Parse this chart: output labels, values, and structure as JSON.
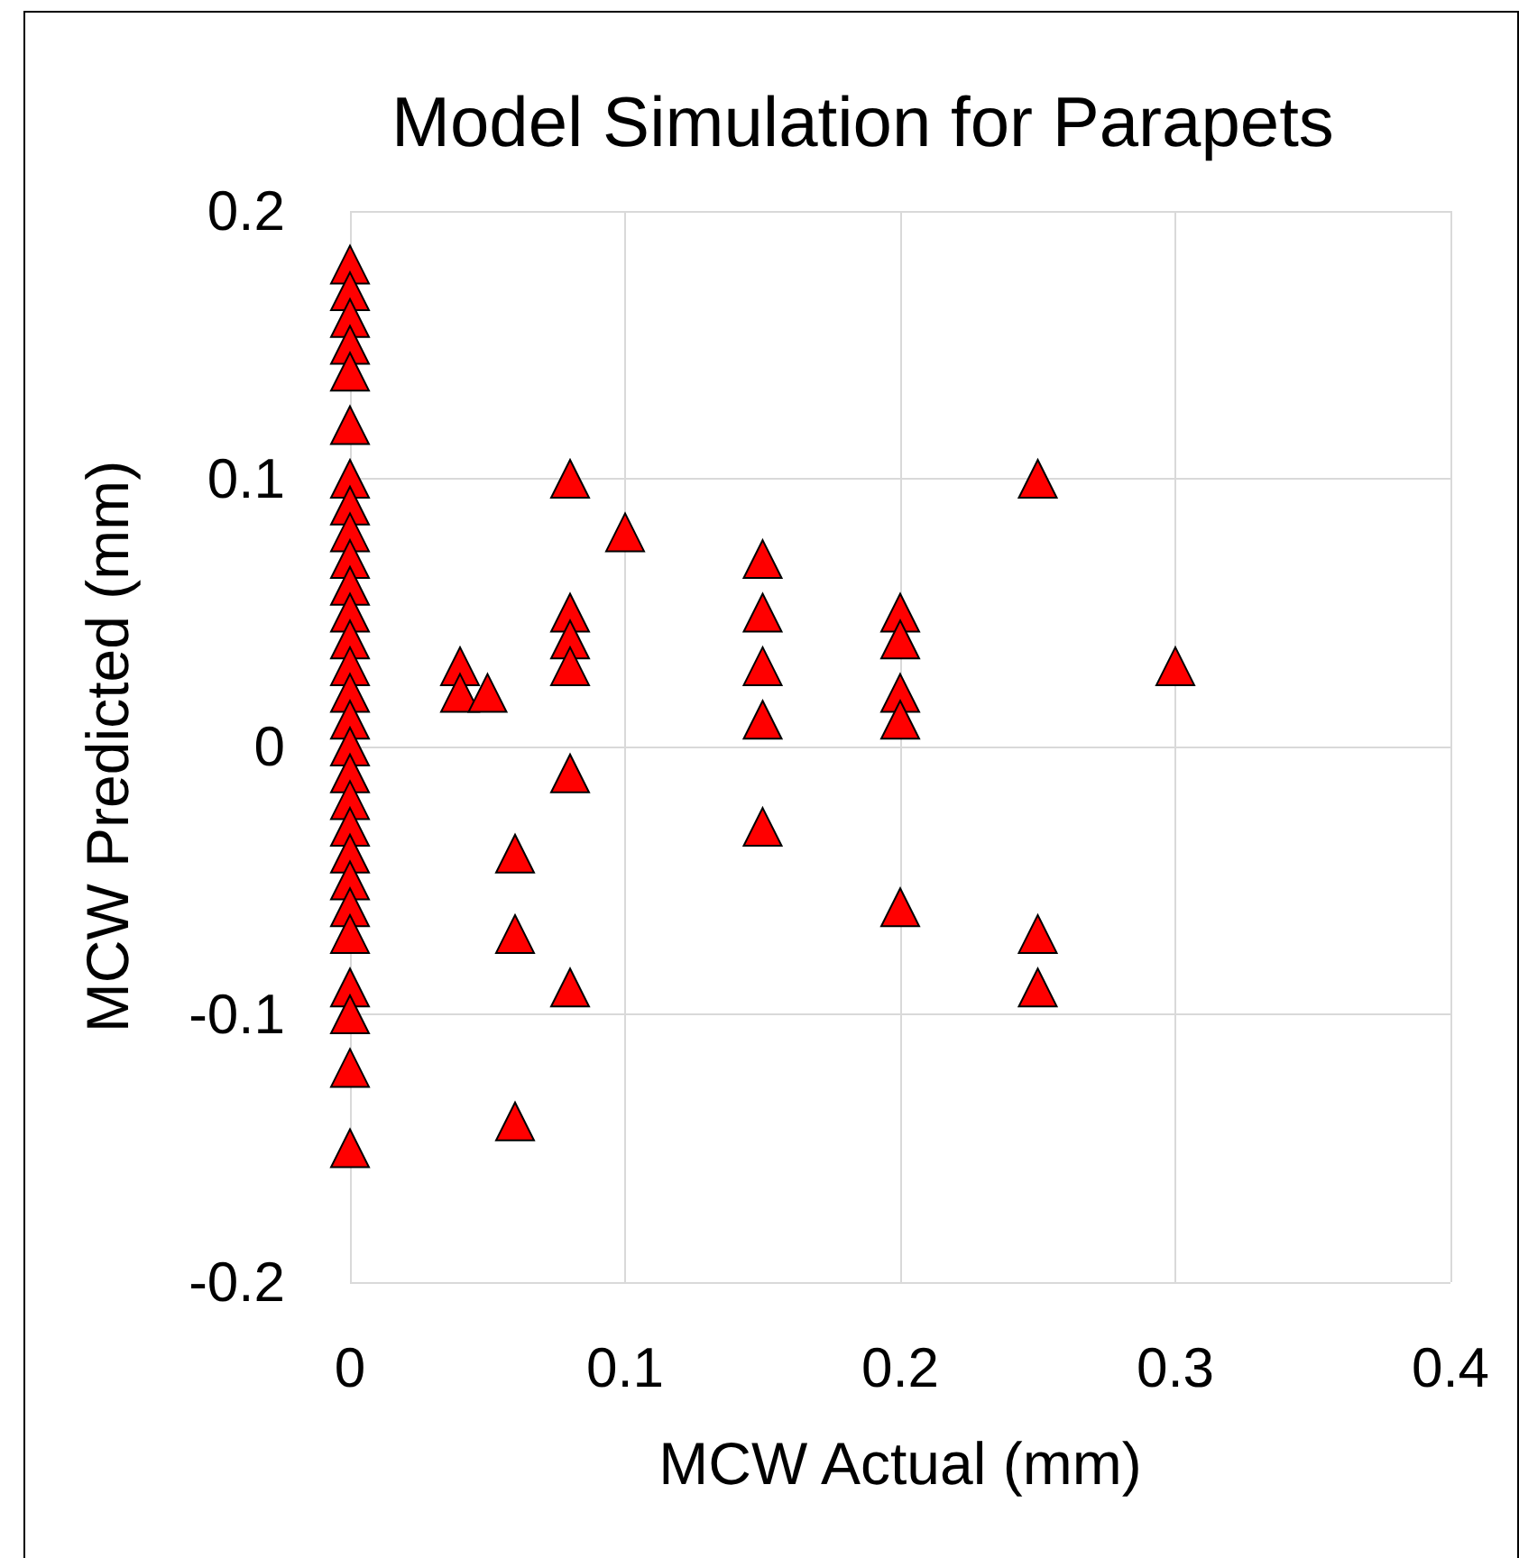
{
  "chart_data": {
    "type": "scatter",
    "title": "Model Simulation for Parapets",
    "xlabel": "MCW Actual (mm)",
    "ylabel": "MCW Predicted (mm)",
    "x": [
      0,
      0,
      0,
      0,
      0,
      0,
      0,
      0,
      0,
      0,
      0,
      0,
      0,
      0,
      0,
      0,
      0,
      0,
      0,
      0,
      0,
      0,
      0,
      0,
      0,
      0,
      0,
      0,
      0.04,
      0.04,
      0.05,
      0.06,
      0.06,
      0.06,
      0.08,
      0.08,
      0.08,
      0.08,
      0.08,
      0.08,
      0.1,
      0.15,
      0.15,
      0.15,
      0.15,
      0.15,
      0.2,
      0.2,
      0.2,
      0.2,
      0.2,
      0.25,
      0.25,
      0.25,
      0.3
    ],
    "values": [
      0.18,
      0.17,
      0.16,
      0.15,
      0.14,
      0.12,
      0.1,
      0.09,
      0.08,
      0.07,
      0.06,
      0.05,
      0.04,
      0.03,
      0.02,
      0.01,
      0,
      -0.01,
      -0.02,
      -0.03,
      -0.04,
      -0.05,
      -0.06,
      -0.07,
      -0.09,
      -0.1,
      -0.12,
      -0.15,
      0.03,
      0.02,
      0.02,
      -0.04,
      -0.07,
      -0.14,
      0.1,
      0.05,
      0.04,
      0.03,
      -0.01,
      -0.09,
      0.08,
      0.07,
      0.05,
      0.03,
      0.01,
      -0.03,
      0.05,
      0.04,
      0.02,
      0.01,
      -0.06,
      0.1,
      -0.07,
      -0.09,
      0.03
    ],
    "color": "#ff0000",
    "marker": "triangle",
    "xlim": [
      0,
      0.4
    ],
    "xticks": [
      0,
      0.1,
      0.2,
      0.3,
      0.4
    ],
    "ylim": [
      -0.2,
      0.2
    ],
    "yticks": [
      -0.2,
      -0.1,
      0,
      0.1,
      0.2
    ],
    "grid": true
  }
}
